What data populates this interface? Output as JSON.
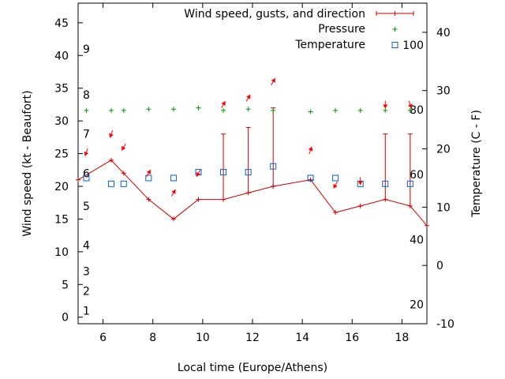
{
  "chart_data": {
    "type": "line",
    "xlabel": "Local time (Europe/Athens)",
    "ylabel_left": "Wind speed (kt - Beaufort)",
    "ylabel_right": "Temperature (C - F)",
    "xlim": [
      5,
      19
    ],
    "ylim_left": [
      -1,
      48
    ],
    "ylim_right": [
      -10,
      45
    ],
    "x_ticks": [
      6,
      8,
      10,
      12,
      14,
      16,
      18
    ],
    "y_ticks_left": [
      0,
      5,
      10,
      15,
      20,
      25,
      30,
      35,
      40,
      45
    ],
    "y_ticks_right": [
      -10,
      0,
      10,
      20,
      30,
      40
    ],
    "beaufort_labels": [
      {
        "label": "1",
        "kt": 1
      },
      {
        "label": "2",
        "kt": 4
      },
      {
        "label": "3",
        "kt": 7
      },
      {
        "label": "4",
        "kt": 11
      },
      {
        "label": "5",
        "kt": 17
      },
      {
        "label": "6",
        "kt": 22
      },
      {
        "label": "7",
        "kt": 28
      },
      {
        "label": "8",
        "kt": 34
      },
      {
        "label": "9",
        "kt": 41
      }
    ],
    "fahrenheit_labels": [
      {
        "label": "20",
        "c": -6.7
      },
      {
        "label": "40",
        "c": 4.4
      },
      {
        "label": "60",
        "c": 15.6
      },
      {
        "label": "80",
        "c": 26.7
      },
      {
        "label": "100",
        "c": 37.8
      }
    ],
    "legend": {
      "wind": "Wind speed, gusts, and direction",
      "pressure": "Pressure",
      "temperature": "Temperature",
      "position": "top-right"
    },
    "colors": {
      "wind": "#cc0000",
      "arrow": "#ff0000",
      "pressure": "#009900",
      "temperature": "#0066cc"
    },
    "series": [
      {
        "name": "Wind speed, gusts, and direction",
        "unit": "kt",
        "points": [
          {
            "x": 5.0,
            "y": 21
          },
          {
            "x": 6.33,
            "y": 24
          },
          {
            "x": 6.83,
            "y": 22
          },
          {
            "x": 7.83,
            "y": 18
          },
          {
            "x": 8.83,
            "y": 15
          },
          {
            "x": 9.83,
            "y": 18
          },
          {
            "x": 10.83,
            "y": 18,
            "gust": 28
          },
          {
            "x": 11.83,
            "y": 19,
            "gust": 29
          },
          {
            "x": 12.83,
            "y": 20,
            "gust": 32
          },
          {
            "x": 14.33,
            "y": 21
          },
          {
            "x": 15.33,
            "y": 16
          },
          {
            "x": 16.33,
            "y": 17
          },
          {
            "x": 17.33,
            "y": 18,
            "gust": 28
          },
          {
            "x": 18.33,
            "y": 17,
            "gust": 28
          },
          {
            "x": 19.0,
            "y": 14
          }
        ]
      },
      {
        "name": "Pressure",
        "points": [
          {
            "x": 5.33,
            "y": 31.6
          },
          {
            "x": 6.33,
            "y": 31.6
          },
          {
            "x": 6.83,
            "y": 31.6
          },
          {
            "x": 7.83,
            "y": 31.8
          },
          {
            "x": 8.83,
            "y": 31.8
          },
          {
            "x": 9.83,
            "y": 32.0
          },
          {
            "x": 10.83,
            "y": 31.6
          },
          {
            "x": 11.83,
            "y": 31.8
          },
          {
            "x": 12.83,
            "y": 31.6
          },
          {
            "x": 14.33,
            "y": 31.4
          },
          {
            "x": 15.33,
            "y": 31.6
          },
          {
            "x": 16.33,
            "y": 31.6
          },
          {
            "x": 17.33,
            "y": 31.6
          },
          {
            "x": 18.33,
            "y": 31.6
          }
        ]
      },
      {
        "name": "Temperature",
        "unit": "C",
        "points": [
          {
            "x": 5.33,
            "y": 15
          },
          {
            "x": 6.33,
            "y": 14
          },
          {
            "x": 6.83,
            "y": 14
          },
          {
            "x": 7.83,
            "y": 15
          },
          {
            "x": 8.83,
            "y": 15
          },
          {
            "x": 9.83,
            "y": 16
          },
          {
            "x": 10.83,
            "y": 16
          },
          {
            "x": 11.83,
            "y": 16
          },
          {
            "x": 12.83,
            "y": 17
          },
          {
            "x": 14.33,
            "y": 15
          },
          {
            "x": 15.33,
            "y": 15
          },
          {
            "x": 16.33,
            "y": 14
          },
          {
            "x": 17.33,
            "y": 14
          },
          {
            "x": 18.33,
            "y": 14
          }
        ]
      }
    ],
    "wind_direction_arrows": [
      {
        "x": 5.33,
        "y": 25.2,
        "dir": 20
      },
      {
        "x": 6.33,
        "y": 28.0,
        "dir": 20
      },
      {
        "x": 6.83,
        "y": 26.0,
        "dir": 30
      },
      {
        "x": 7.83,
        "y": 22.0,
        "dir": 210
      },
      {
        "x": 8.83,
        "y": 19.0,
        "dir": 210
      },
      {
        "x": 9.83,
        "y": 22.0,
        "dir": 30
      },
      {
        "x": 10.83,
        "y": 32.5,
        "dir": 210
      },
      {
        "x": 11.83,
        "y": 33.5,
        "dir": 210
      },
      {
        "x": 12.83,
        "y": 36.0,
        "dir": 210
      },
      {
        "x": 14.33,
        "y": 25.5,
        "dir": 200
      },
      {
        "x": 15.33,
        "y": 20.2,
        "dir": 30
      },
      {
        "x": 16.33,
        "y": 20.8,
        "dir": 0
      },
      {
        "x": 17.33,
        "y": 32.5,
        "dir": 0
      },
      {
        "x": 18.33,
        "y": 32.5,
        "dir": 340
      }
    ]
  }
}
